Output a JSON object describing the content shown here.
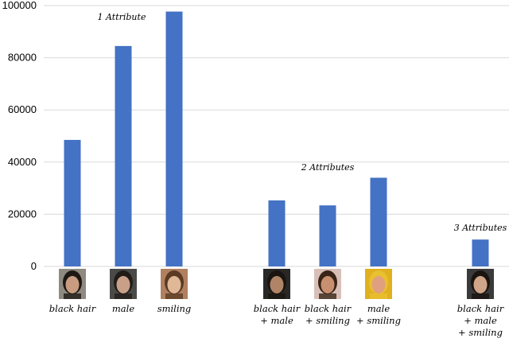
{
  "chart_data": {
    "type": "bar",
    "title": "",
    "xlabel": "",
    "ylabel": "",
    "ylim": [
      0,
      100000
    ],
    "yticks": [
      "0",
      "20000",
      "40000",
      "60000",
      "80000",
      "100000"
    ],
    "grid": true,
    "bar_color": "#4472C4",
    "grid_color": "#d9d9d9",
    "groups": [
      {
        "label": "1 Attribute",
        "categories": [
          {
            "name": [
              "black hair"
            ],
            "value": 48500
          },
          {
            "name": [
              "male"
            ],
            "value": 84500
          },
          {
            "name": [
              "smiling"
            ],
            "value": 97700
          }
        ]
      },
      {
        "label": "2 Attributes",
        "categories": [
          {
            "name": [
              "black hair",
              "+ male"
            ],
            "value": 25300
          },
          {
            "name": [
              "black hair",
              "+ smiling"
            ],
            "value": 23400
          },
          {
            "name": [
              "male",
              "+ smiling"
            ],
            "value": 34000
          }
        ]
      },
      {
        "label": "3 Attributes",
        "categories": [
          {
            "name": [
              "black hair",
              "+ male",
              "+ smiling"
            ],
            "value": 10300
          }
        ]
      }
    ]
  }
}
